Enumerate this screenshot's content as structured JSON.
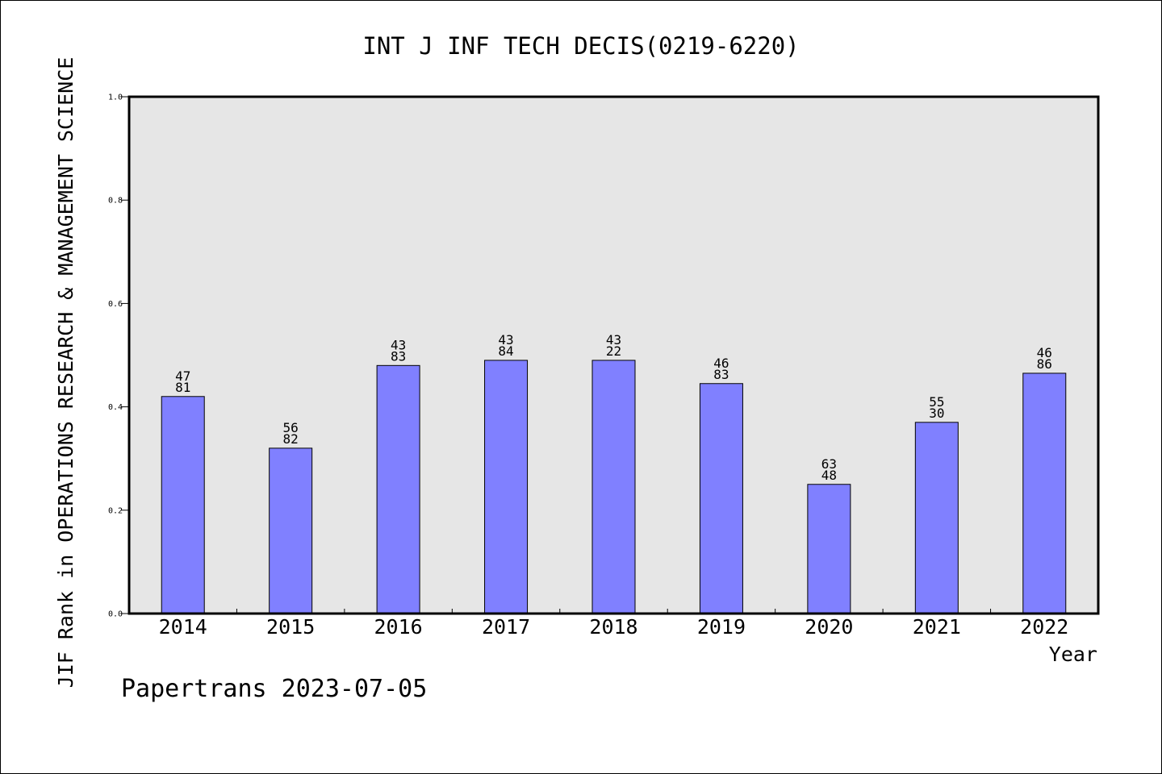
{
  "chart_data": {
    "type": "bar",
    "title": "INT J INF TECH DECIS(0219-6220)",
    "xlabel": "Year",
    "ylabel": "JIF Rank in OPERATIONS RESEARCH & MANAGEMENT SCIENCE",
    "categories": [
      "2014",
      "2015",
      "2016",
      "2017",
      "2018",
      "2019",
      "2020",
      "2021",
      "2022"
    ],
    "values": [
      0.42,
      0.32,
      0.48,
      0.49,
      0.49,
      0.445,
      0.25,
      0.37,
      0.465
    ],
    "data_labels": [
      [
        "47",
        "81"
      ],
      [
        "56",
        "82"
      ],
      [
        "43",
        "83"
      ],
      [
        "43",
        "84"
      ],
      [
        "43",
        "22"
      ],
      [
        "46",
        "83"
      ],
      [
        "63",
        "48"
      ],
      [
        "55",
        "30"
      ],
      [
        "46",
        "86"
      ]
    ],
    "ylim": [
      0,
      1.0
    ],
    "yticks": [
      "0.0",
      "0.2",
      "0.4",
      "0.6",
      "0.8",
      "1.0"
    ],
    "grid": false,
    "colors": {
      "bar_fill": "#8080ff",
      "bar_stroke": "#000000",
      "plot_background": "#e6e6e6"
    }
  },
  "footer": {
    "text": "Papertrans 2023-07-05"
  }
}
